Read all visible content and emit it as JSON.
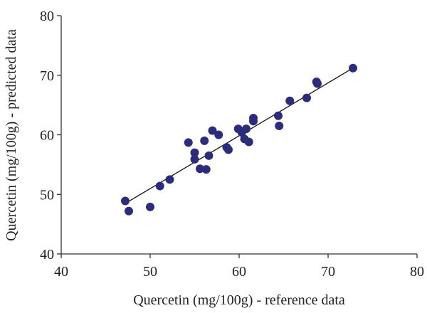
{
  "chart_data": {
    "type": "scatter",
    "title": "",
    "xlabel": "Quercetin (mg/100g) - reference data",
    "ylabel": "Quercetin (mg/100g) - predicted data",
    "xlim": [
      40,
      80
    ],
    "ylim": [
      40,
      80
    ],
    "xticks": [
      40,
      50,
      60,
      70,
      80
    ],
    "yticks": [
      40,
      50,
      60,
      70,
      80
    ],
    "grid": false,
    "legend": "none",
    "marker_color": "#2b2d7c",
    "trendline": {
      "x": [
        47.0,
        72.8
      ],
      "y": [
        48.3,
        71.2
      ]
    },
    "series": [
      {
        "points": [
          [
            47.2,
            48.9
          ],
          [
            47.6,
            47.2
          ],
          [
            50.0,
            47.9
          ],
          [
            51.1,
            51.4
          ],
          [
            52.2,
            52.5
          ],
          [
            54.3,
            58.7
          ],
          [
            55.0,
            57.0
          ],
          [
            55.0,
            55.9
          ],
          [
            55.6,
            54.3
          ],
          [
            56.1,
            59.0
          ],
          [
            56.3,
            54.2
          ],
          [
            56.6,
            56.5
          ],
          [
            57.0,
            60.7
          ],
          [
            57.7,
            60.0
          ],
          [
            58.6,
            57.9
          ],
          [
            58.8,
            57.5
          ],
          [
            59.9,
            61.0
          ],
          [
            60.3,
            60.4
          ],
          [
            60.6,
            59.3
          ],
          [
            60.8,
            61.0
          ],
          [
            61.1,
            58.8
          ],
          [
            61.6,
            62.8
          ],
          [
            61.6,
            62.3
          ],
          [
            64.4,
            63.2
          ],
          [
            64.5,
            61.5
          ],
          [
            65.7,
            65.7
          ],
          [
            67.6,
            66.2
          ],
          [
            68.7,
            68.9
          ],
          [
            68.8,
            68.6
          ],
          [
            72.8,
            71.2
          ]
        ]
      }
    ]
  }
}
